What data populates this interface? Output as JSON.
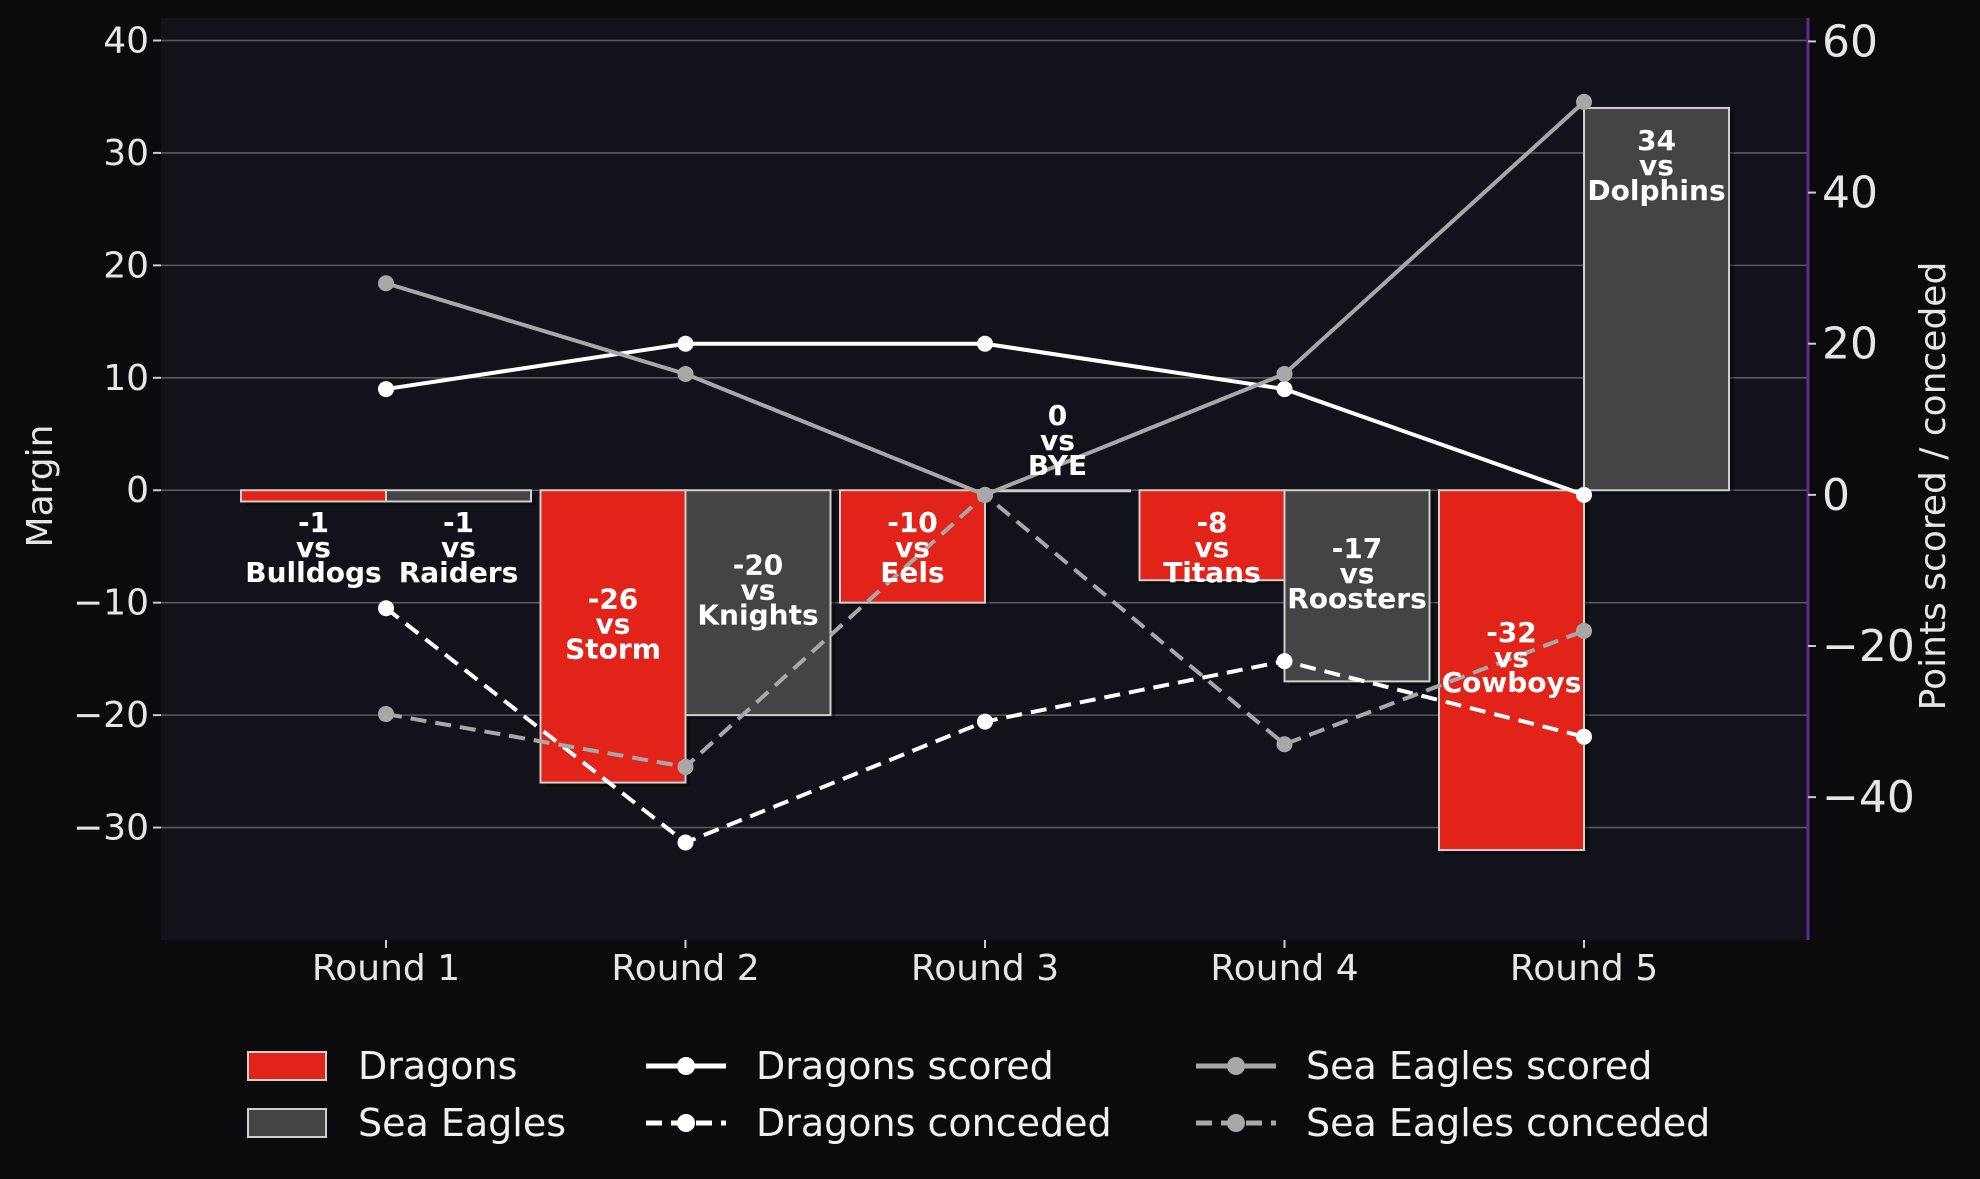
{
  "chart_data": {
    "type": "bar",
    "categories": [
      "Round 1",
      "Round 2",
      "Round 3",
      "Round 4",
      "Round 5"
    ],
    "y_left": {
      "label": "Margin",
      "ticks": [
        40,
        30,
        20,
        10,
        0,
        -10,
        -20,
        -30
      ],
      "range": [
        -40,
        42
      ]
    },
    "y_right": {
      "label": "Points scored / conceded",
      "ticks": [
        60,
        40,
        20,
        0,
        -20,
        -40
      ],
      "range": [
        -58.9,
        63.1
      ]
    },
    "bars": [
      {
        "name": "Dragons",
        "color": "#e2231a",
        "values": [
          -1,
          -26,
          -10,
          -8,
          -32
        ],
        "labels": [
          [
            "-1",
            "vs",
            "Bulldogs"
          ],
          [
            "-26",
            "vs",
            "Storm"
          ],
          [
            "-10",
            "vs",
            "Eels"
          ],
          [
            "-8",
            "vs",
            "Titans"
          ],
          [
            "-32",
            "vs",
            "Cowboys"
          ]
        ]
      },
      {
        "name": "Sea Eagles",
        "color": "#444444",
        "values": [
          -1,
          -20,
          0,
          -17,
          34
        ],
        "labels": [
          [
            "-1",
            "vs",
            "Raiders"
          ],
          [
            "-20",
            "vs",
            "Knights"
          ],
          [
            "0",
            "vs",
            "BYE"
          ],
          [
            "-17",
            "vs",
            "Roosters"
          ],
          [
            "34",
            "vs",
            "Dolphins"
          ]
        ]
      }
    ],
    "lines": [
      {
        "name": "Dragons scored",
        "color": "#ffffff",
        "dash": false,
        "values": [
          14,
          20,
          20,
          14,
          0
        ]
      },
      {
        "name": "Dragons conceded",
        "color": "#ffffff",
        "dash": true,
        "values": [
          -15,
          -46,
          -30,
          -22,
          -32
        ]
      },
      {
        "name": "Sea Eagles scored",
        "color": "#a8a8a8",
        "dash": false,
        "values": [
          28,
          16,
          0,
          16,
          52
        ]
      },
      {
        "name": "Sea Eagles conceded",
        "color": "#a8a8a8",
        "dash": true,
        "values": [
          -29,
          -36,
          0,
          -33,
          -18
        ]
      }
    ],
    "legend": {
      "placement": "bottom",
      "items": [
        "Dragons",
        "Sea Eagles",
        "Dragons scored",
        "Dragons conceded",
        "Sea Eagles scored",
        "Sea Eagles conceded"
      ]
    },
    "grid": true,
    "colors": {
      "background": "#0b0b0e",
      "plot_area": "#12131a",
      "grid": "#5a5a5e",
      "right_spine": "#5b2d8e"
    }
  }
}
